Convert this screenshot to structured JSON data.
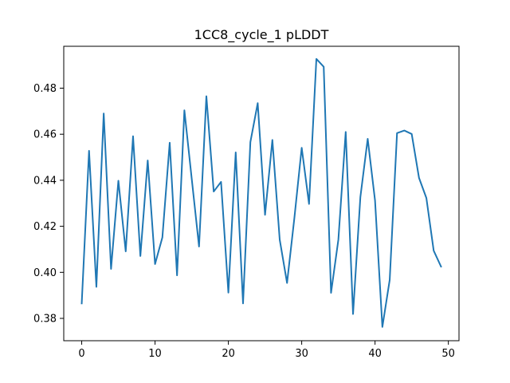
{
  "chart_data": {
    "type": "line",
    "title": "1CC8_cycle_1 pLDDT",
    "xlabel": "",
    "ylabel": "",
    "xlim": [
      -2.45,
      51.45
    ],
    "ylim": [
      0.3703,
      0.4982
    ],
    "xticks": [
      0,
      10,
      20,
      30,
      40,
      50
    ],
    "xtick_labels": [
      "0",
      "10",
      "20",
      "30",
      "40",
      "50"
    ],
    "yticks": [
      0.38,
      0.4,
      0.42,
      0.44,
      0.46,
      0.48
    ],
    "ytick_labels": [
      "0.38",
      "0.40",
      "0.42",
      "0.44",
      "0.46",
      "0.48"
    ],
    "grid": false,
    "legend": "none",
    "series": [
      {
        "color": "#1f77b4",
        "x": [
          0,
          1,
          2,
          3,
          4,
          5,
          6,
          7,
          8,
          9,
          10,
          11,
          12,
          13,
          14,
          15,
          16,
          17,
          18,
          19,
          20,
          21,
          22,
          23,
          24,
          25,
          26,
          27,
          28,
          29,
          30,
          31,
          32,
          33,
          34,
          35,
          36,
          37,
          38,
          39,
          40,
          41,
          42,
          43,
          44,
          45,
          46,
          47,
          48,
          49
        ],
        "values": [
          0.3865,
          0.4528,
          0.3937,
          0.469,
          0.4015,
          0.4398,
          0.4091,
          0.4591,
          0.4071,
          0.4486,
          0.4036,
          0.4152,
          0.4563,
          0.3987,
          0.4704,
          0.4407,
          0.4112,
          0.4765,
          0.4351,
          0.4393,
          0.3912,
          0.4521,
          0.3865,
          0.4566,
          0.4735,
          0.425,
          0.4575,
          0.4142,
          0.3954,
          0.4236,
          0.4541,
          0.4297,
          0.4927,
          0.4893,
          0.3911,
          0.4142,
          0.461,
          0.3819,
          0.4327,
          0.458,
          0.4312,
          0.3763,
          0.3967,
          0.4605,
          0.4616,
          0.4601,
          0.441,
          0.4323,
          0.4094,
          0.4025
        ]
      }
    ]
  }
}
